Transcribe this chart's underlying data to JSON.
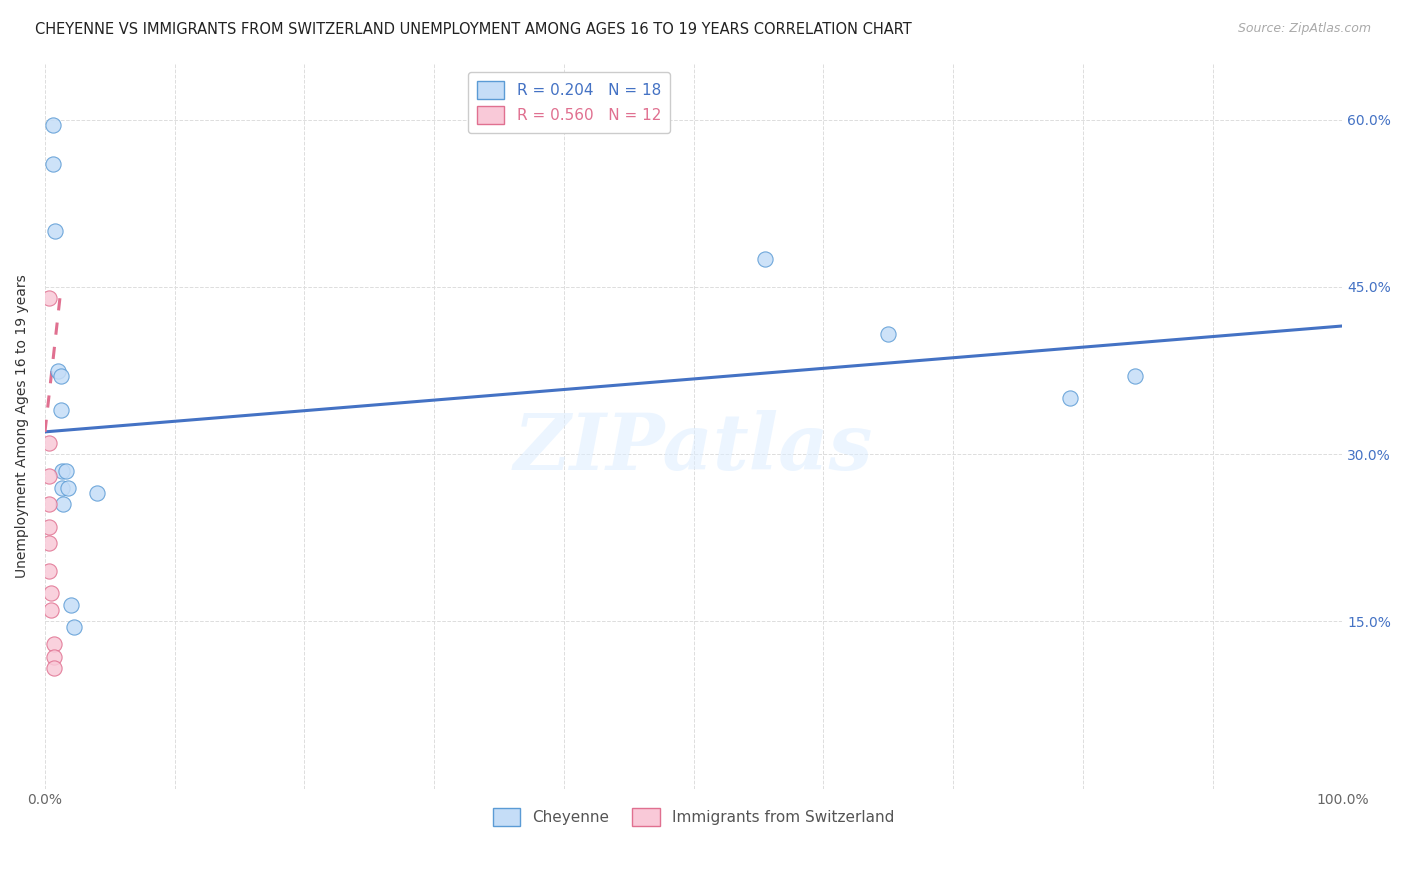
{
  "title": "CHEYENNE VS IMMIGRANTS FROM SWITZERLAND UNEMPLOYMENT AMONG AGES 16 TO 19 YEARS CORRELATION CHART",
  "source": "Source: ZipAtlas.com",
  "ylabel": "Unemployment Among Ages 16 to 19 years",
  "xlim": [
    0,
    1.0
  ],
  "ylim": [
    0,
    0.65
  ],
  "xticks": [
    0.0,
    0.1,
    0.2,
    0.3,
    0.4,
    0.5,
    0.6,
    0.7,
    0.8,
    0.9,
    1.0
  ],
  "xticklabels": [
    "0.0%",
    "",
    "",
    "",
    "",
    "",
    "",
    "",
    "",
    "",
    "100.0%"
  ],
  "yticks_left": [
    0.0,
    0.15,
    0.3,
    0.45,
    0.6
  ],
  "ytick_right_vals": [
    0.6,
    0.45,
    0.3,
    0.15
  ],
  "yticks_right_labels": [
    "60.0%",
    "45.0%",
    "30.0%",
    "15.0%"
  ],
  "watermark": "ZIPatlas",
  "legend_top": [
    {
      "label": "R = 0.204   N = 18",
      "facecolor": "#c5ddf7",
      "edgecolor": "#5b9bd5"
    },
    {
      "label": "R = 0.560   N = 12",
      "facecolor": "#f9c9d8",
      "edgecolor": "#e07090"
    }
  ],
  "legend_bottom_labels": [
    "Cheyenne",
    "Immigrants from Switzerland"
  ],
  "cheyenne_x": [
    0.006,
    0.006,
    0.008,
    0.01,
    0.012,
    0.012,
    0.013,
    0.013,
    0.014,
    0.016,
    0.018,
    0.02,
    0.022,
    0.04,
    0.555,
    0.65,
    0.79,
    0.84
  ],
  "cheyenne_y": [
    0.595,
    0.56,
    0.5,
    0.375,
    0.37,
    0.34,
    0.285,
    0.27,
    0.255,
    0.285,
    0.27,
    0.165,
    0.145,
    0.265,
    0.475,
    0.408,
    0.35,
    0.37
  ],
  "swiss_x": [
    0.003,
    0.003,
    0.003,
    0.003,
    0.003,
    0.003,
    0.003,
    0.005,
    0.005,
    0.007,
    0.007,
    0.007
  ],
  "swiss_y": [
    0.44,
    0.31,
    0.28,
    0.255,
    0.235,
    0.22,
    0.195,
    0.175,
    0.16,
    0.13,
    0.118,
    0.108
  ],
  "blue_line_x": [
    0.0,
    1.0
  ],
  "blue_line_y": [
    0.32,
    0.415
  ],
  "pink_line_x": [
    0.0,
    0.012
  ],
  "pink_line_y": [
    0.32,
    0.445
  ],
  "blue_color": "#4472c4",
  "pink_color": "#e07090",
  "scatter_blue_face": "#c5ddf7",
  "scatter_blue_edge": "#5b9bd5",
  "scatter_pink_face": "#f9c9d8",
  "scatter_pink_edge": "#e07090",
  "background_color": "#ffffff",
  "grid_color": "#dddddd"
}
